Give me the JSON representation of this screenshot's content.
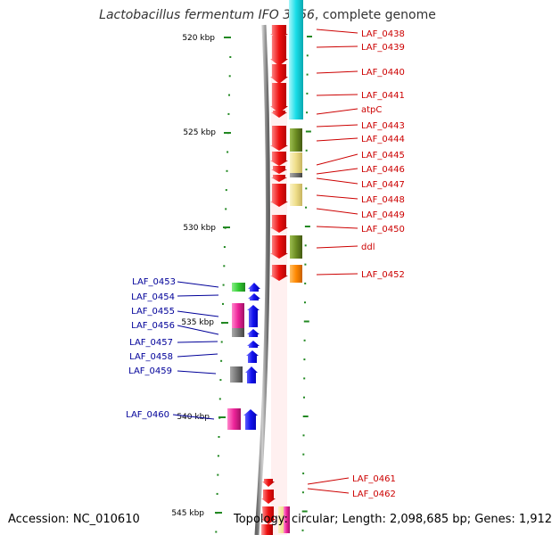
{
  "title": {
    "species": "Lactobacillus fermentum IFO 3956",
    "suffix": ", complete genome"
  },
  "footer": {
    "accession": "Accession: NC_010610",
    "topology": "Topology: circular; Length: 2,098,685 bp; Genes: 1,912"
  },
  "colors": {
    "cds": "#ee1111",
    "flank_cyan": "#19dde8",
    "olive": "#6b8c21",
    "khaki": "#eedd88",
    "gray": "#777777",
    "orange": "#ff8800",
    "green": "#33cc33",
    "magenta": "#ee2299",
    "blue": "#1111ee",
    "backbone": "#888888",
    "tick": "#228822",
    "label_right": "#cc0000",
    "label_left": "#000099"
  },
  "scale_labels": [
    "520 kbp",
    "525 kbp",
    "530 kbp",
    "535 kbp",
    "540 kbp",
    "545 kbp"
  ],
  "genes_right": [
    "LAF_0438",
    "LAF_0439",
    "LAF_0440",
    "LAF_0441",
    "atpC",
    "LAF_0443",
    "LAF_0444",
    "LAF_0445",
    "LAF_0446",
    "LAF_0447",
    "LAF_0448",
    "LAF_0449",
    "LAF_0450",
    "ddl",
    "LAF_0452",
    "LAF_0461",
    "LAF_0462"
  ],
  "genes_left": [
    "LAF_0453",
    "LAF_0454",
    "LAF_0455",
    "LAF_0456",
    "LAF_0457",
    "LAF_0458",
    "LAF_0459",
    "LAF_0460"
  ]
}
